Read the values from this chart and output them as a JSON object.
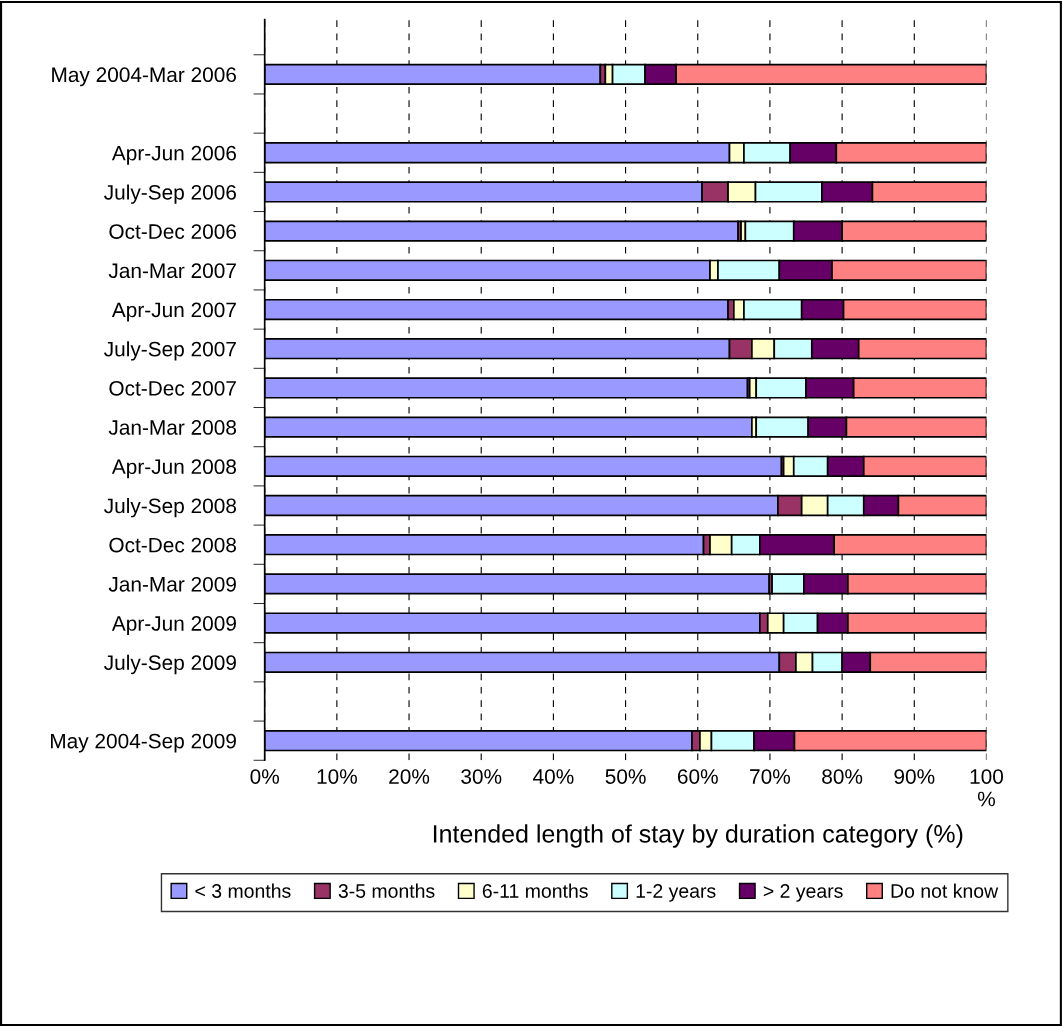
{
  "chart_data": {
    "type": "bar",
    "orientation": "horizontal",
    "stacked": true,
    "xlabel": "Intended length of stay by duration category (%)",
    "categories": [
      "May 2004-Mar 2006",
      null,
      "Apr-Jun 2006",
      "July-Sep 2006",
      "Oct-Dec 2006",
      "Jan-Mar 2007",
      "Apr-Jun 2007",
      "July-Sep 2007",
      "Oct-Dec 2007",
      "Jan-Mar 2008",
      "Apr-Jun 2008",
      "July-Sep 2008",
      "Oct-Dec 2008",
      "Jan-Mar 2009",
      "Apr-Jun 2009",
      "July-Sep 2009",
      null,
      "May 2004-Sep 2009"
    ],
    "series": [
      {
        "name": "< 3 months",
        "color": "#9999ff",
        "values": [
          46.5,
          null,
          64.4,
          60.6,
          65.6,
          61.7,
          64.2,
          64.4,
          66.9,
          67.5,
          71.6,
          71.1,
          60.8,
          69.9,
          68.6,
          71.3,
          null,
          59.2
        ]
      },
      {
        "name": "3-5 months",
        "color": "#993366",
        "values": [
          0.7,
          null,
          0,
          3.6,
          0.4,
          0,
          0.8,
          3.1,
          0.3,
          0,
          0.3,
          3.3,
          0.9,
          0.4,
          1.1,
          2.3,
          null,
          1.1
        ]
      },
      {
        "name": "6-11 months",
        "color": "#ffffcc",
        "values": [
          1.0,
          null,
          2.0,
          3.8,
          0.6,
          1.1,
          1.4,
          3.1,
          0.9,
          0.6,
          1.4,
          3.6,
          3.0,
          0,
          2.2,
          2.3,
          null,
          1.6
        ]
      },
      {
        "name": "1-2 years",
        "color": "#ccffff",
        "values": [
          4.5,
          null,
          6.4,
          9.2,
          6.7,
          8.5,
          8.0,
          5.2,
          6.9,
          7.2,
          4.7,
          5.0,
          3.9,
          4.4,
          4.7,
          4.1,
          null,
          5.9
        ]
      },
      {
        "name": "> 2 years",
        "color": "#660066",
        "values": [
          4.3,
          null,
          6.4,
          7.0,
          6.7,
          7.3,
          5.8,
          6.5,
          6.6,
          5.3,
          5.0,
          4.8,
          10.3,
          6.1,
          4.2,
          3.9,
          null,
          5.6
        ]
      },
      {
        "name": "Do not know",
        "color": "#ff8080",
        "values": [
          43.0,
          null,
          20.8,
          15.8,
          20.0,
          21.4,
          19.8,
          17.7,
          18.4,
          19.4,
          17.0,
          12.2,
          21.1,
          19.2,
          19.2,
          16.1,
          null,
          26.6
        ]
      }
    ],
    "xlim": [
      0,
      100
    ],
    "xticks": [
      {
        "value": 0,
        "label": "0%"
      },
      {
        "value": 10,
        "label": "10%"
      },
      {
        "value": 20,
        "label": "20%"
      },
      {
        "value": 30,
        "label": "30%"
      },
      {
        "value": 40,
        "label": "40%"
      },
      {
        "value": 50,
        "label": "50%"
      },
      {
        "value": 60,
        "label": "60%"
      },
      {
        "value": 70,
        "label": "70%"
      },
      {
        "value": 80,
        "label": "80%"
      },
      {
        "value": 90,
        "label": "90%"
      },
      {
        "value": 100,
        "label": "100\n%"
      }
    ],
    "grid": "x",
    "legend": "bottom"
  }
}
